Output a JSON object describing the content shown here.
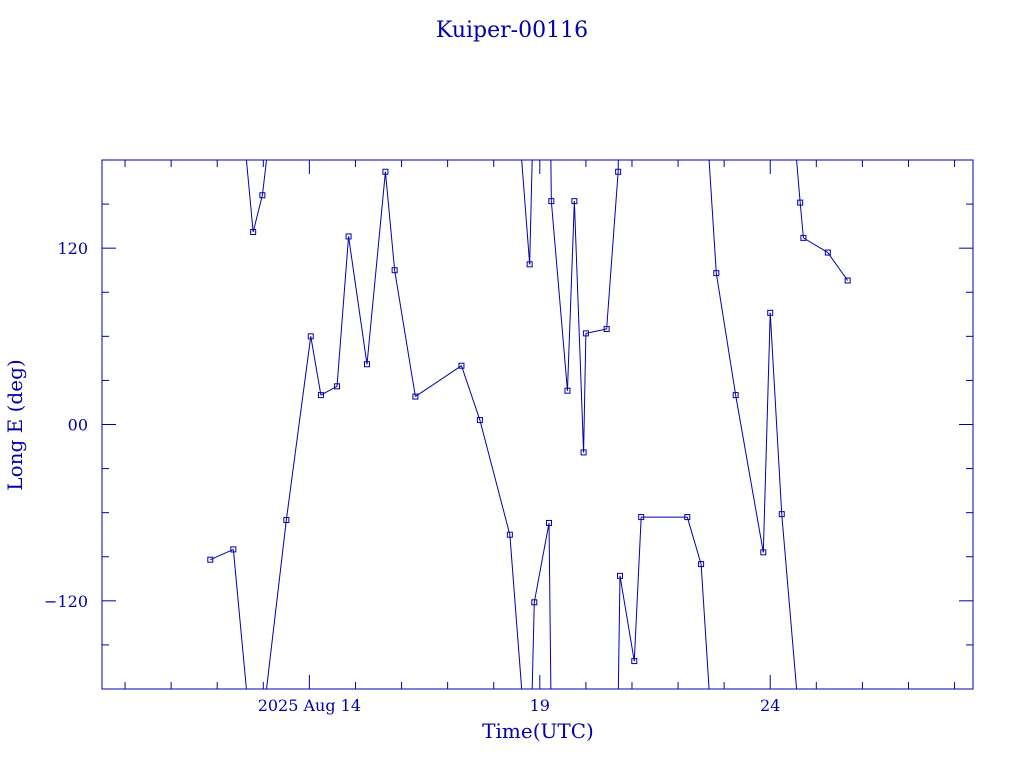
{
  "chart_data": {
    "type": "line",
    "title": "Kuiper-00116",
    "xlabel": "Time(UTC)",
    "ylabel": "Long E (deg)",
    "x_unit": "days, August 2025",
    "xlim": [
      9.5,
      28.4
    ],
    "ylim": [
      -180,
      180
    ],
    "x_ticks": [
      {
        "value": 14,
        "label": "2025 Aug 14"
      },
      {
        "value": 19,
        "label": "19"
      },
      {
        "value": 24,
        "label": "24"
      }
    ],
    "y_ticks": [
      {
        "value": 120,
        "label": "120"
      },
      {
        "value": 0,
        "label": "00"
      },
      {
        "value": -120,
        "label": "−120"
      }
    ],
    "grid": false,
    "wraps_at_180": true,
    "color": "#0000aa",
    "points": [
      [
        11.85,
        -92
      ],
      [
        12.35,
        -85
      ],
      [
        12.78,
        131
      ],
      [
        12.98,
        156
      ],
      [
        13.5,
        -65
      ],
      [
        14.03,
        60
      ],
      [
        14.25,
        20
      ],
      [
        14.6,
        26
      ],
      [
        14.85,
        128
      ],
      [
        15.25,
        41
      ],
      [
        15.65,
        172
      ],
      [
        15.85,
        105
      ],
      [
        16.3,
        19
      ],
      [
        17.3,
        40
      ],
      [
        17.7,
        3
      ],
      [
        18.35,
        -75
      ],
      [
        18.78,
        109
      ],
      [
        18.88,
        -121
      ],
      [
        19.2,
        -67
      ],
      [
        19.25,
        152
      ],
      [
        19.6,
        23
      ],
      [
        19.75,
        152
      ],
      [
        19.95,
        -19
      ],
      [
        20.0,
        62
      ],
      [
        20.45,
        65
      ],
      [
        20.7,
        172
      ],
      [
        20.74,
        -103
      ],
      [
        21.05,
        -161
      ],
      [
        21.2,
        -63
      ],
      [
        22.2,
        -63
      ],
      [
        22.5,
        -95
      ],
      [
        22.83,
        103
      ],
      [
        23.25,
        20
      ],
      [
        23.85,
        -87
      ],
      [
        24.0,
        76
      ],
      [
        24.25,
        -61
      ],
      [
        24.65,
        151
      ],
      [
        24.72,
        127
      ],
      [
        25.25,
        117
      ],
      [
        25.68,
        98
      ]
    ]
  }
}
